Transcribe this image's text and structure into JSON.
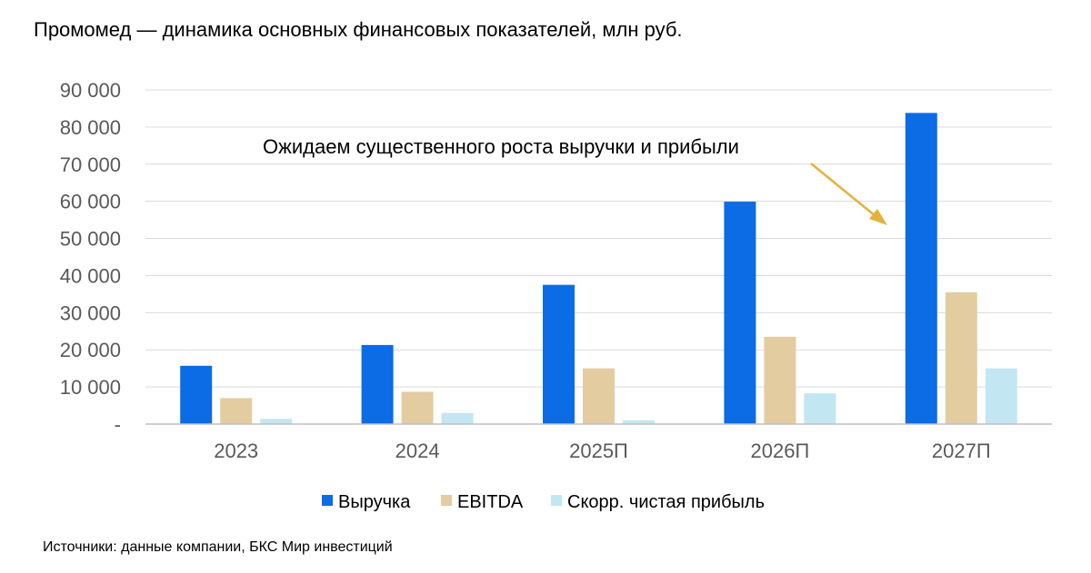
{
  "chart_data": {
    "type": "bar",
    "title": "Промомед — динамика основных финансовых показателей, млн руб.",
    "categories": [
      "2023",
      "2024",
      "2025П",
      "2026П",
      "2027П"
    ],
    "series": [
      {
        "name": "Выручка",
        "color": "#0B6CE6",
        "values": [
          15700,
          21300,
          37500,
          59900,
          83800
        ]
      },
      {
        "name": "EBITDA",
        "color": "#E3CCA0",
        "values": [
          7000,
          8700,
          15000,
          23500,
          35500
        ]
      },
      {
        "name": "Скорр. чистая прибыль",
        "color": "#C3E6F3",
        "values": [
          1400,
          3000,
          1000,
          8300,
          15000
        ]
      }
    ],
    "ylim": [
      0,
      90000
    ],
    "yticks": [
      0,
      10000,
      20000,
      30000,
      40000,
      50000,
      60000,
      70000,
      80000,
      90000
    ],
    "ytick_labels": [
      "-",
      "10 000",
      "20 000",
      "30 000",
      "40 000",
      "50 000",
      "60 000",
      "70 000",
      "80 000",
      "90 000"
    ],
    "grid": true,
    "legend_position": "bottom",
    "annotation": {
      "text": "Ожидаем существенного роста выручки и прибыли",
      "arrow_color": "#E3B23C"
    }
  },
  "source": "Источники: данные компании, БКС Мир инвестиций"
}
